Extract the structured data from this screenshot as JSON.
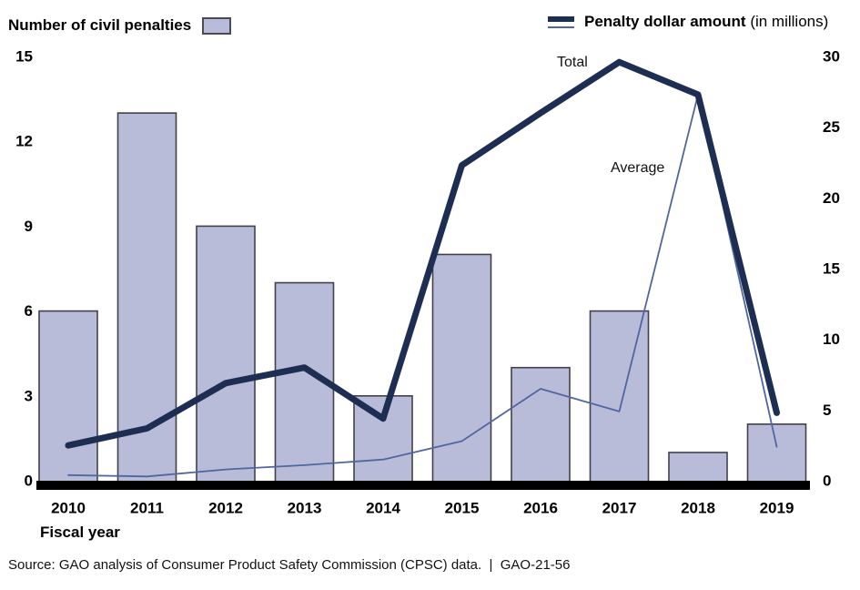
{
  "legend": {
    "bars_label": "Number of civil penalties",
    "lines_label_bold": "Penalty dollar amount",
    "lines_label_normal": " (in millions)"
  },
  "annotations": {
    "total": "Total",
    "average": "Average"
  },
  "xlabel": "Fiscal year",
  "source": "Source: GAO analysis of Consumer Product Safety Commission (CPSC) data.  |  GAO-21-56",
  "colors": {
    "bar_fill": "#b8bcd8",
    "bar_border": "#41414c",
    "total_line": "#1e2d52",
    "average_line": "#51669f",
    "axis": "#000000",
    "text": "#000000"
  },
  "chart_data": {
    "type": "bar+line",
    "title": "",
    "xlabel": "Fiscal year",
    "categories": [
      "2010",
      "2011",
      "2012",
      "2013",
      "2014",
      "2015",
      "2016",
      "2017",
      "2018",
      "2019"
    ],
    "series": [
      {
        "name": "Number of civil penalties",
        "type": "bar",
        "axis": "left",
        "values": [
          6,
          13,
          9,
          7,
          3,
          8,
          4,
          6,
          1,
          2
        ]
      },
      {
        "name": "Total penalty dollar amount (in millions)",
        "type": "line",
        "axis": "right",
        "values": [
          2.5,
          3.7,
          6.9,
          8.0,
          4.4,
          22.3,
          26.0,
          29.6,
          27.3,
          4.8
        ]
      },
      {
        "name": "Average penalty dollar amount (in millions)",
        "type": "line",
        "axis": "right",
        "values": [
          0.4,
          0.3,
          0.8,
          1.1,
          1.5,
          2.8,
          6.5,
          4.9,
          27.3,
          2.4
        ]
      }
    ],
    "left_axis": {
      "label": "Number of civil penalties",
      "ticks": [
        0,
        3,
        6,
        9,
        12,
        15
      ],
      "range": [
        0,
        15
      ]
    },
    "right_axis": {
      "label": "Penalty dollar amount (in millions)",
      "ticks": [
        0,
        5,
        10,
        15,
        20,
        25,
        30
      ],
      "range": [
        0,
        30
      ]
    },
    "grid": false,
    "legend_position": "top"
  }
}
